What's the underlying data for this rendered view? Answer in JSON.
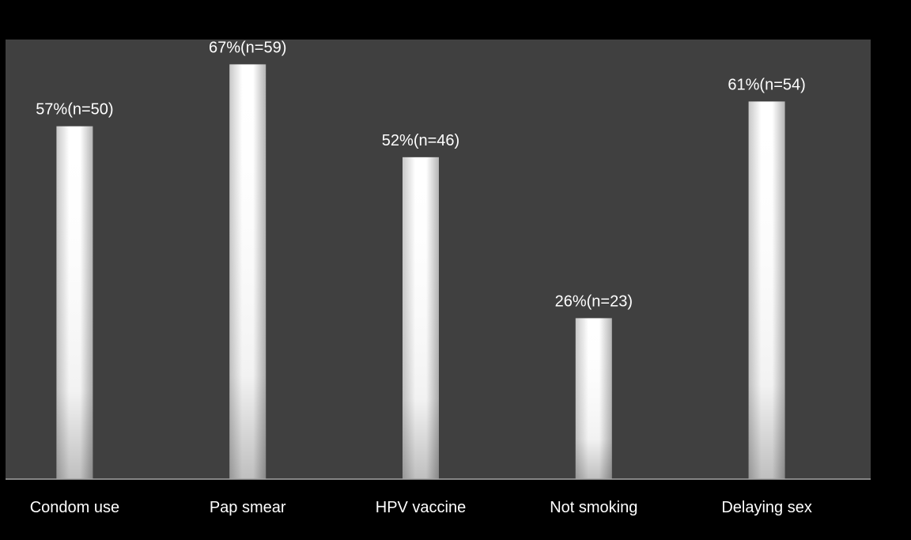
{
  "chart_data": {
    "type": "bar",
    "title": "",
    "xlabel": "",
    "ylabel": "",
    "categories": [
      "Condom use",
      "Pap smear",
      "HPV vaccine",
      "Not smoking",
      "Delaying sex"
    ],
    "values": [
      57,
      67,
      52,
      26,
      61
    ],
    "unit": "%",
    "data_labels": [
      "57%(n=50)",
      "67%(n=59)",
      "52%(n=46)",
      "26%(n=23)",
      "61%(n=54)"
    ],
    "counts": [
      50,
      59,
      46,
      23,
      54
    ],
    "ylim": [
      0,
      75
    ],
    "grid": false,
    "legend": "none",
    "colors": {
      "background": "#000000",
      "plot_area": "#404040",
      "bar_highlight": "#ffffff",
      "bar_shade": "#b4b4b4",
      "axis_line": "#a6a6a6",
      "text": "#ffffff"
    }
  }
}
